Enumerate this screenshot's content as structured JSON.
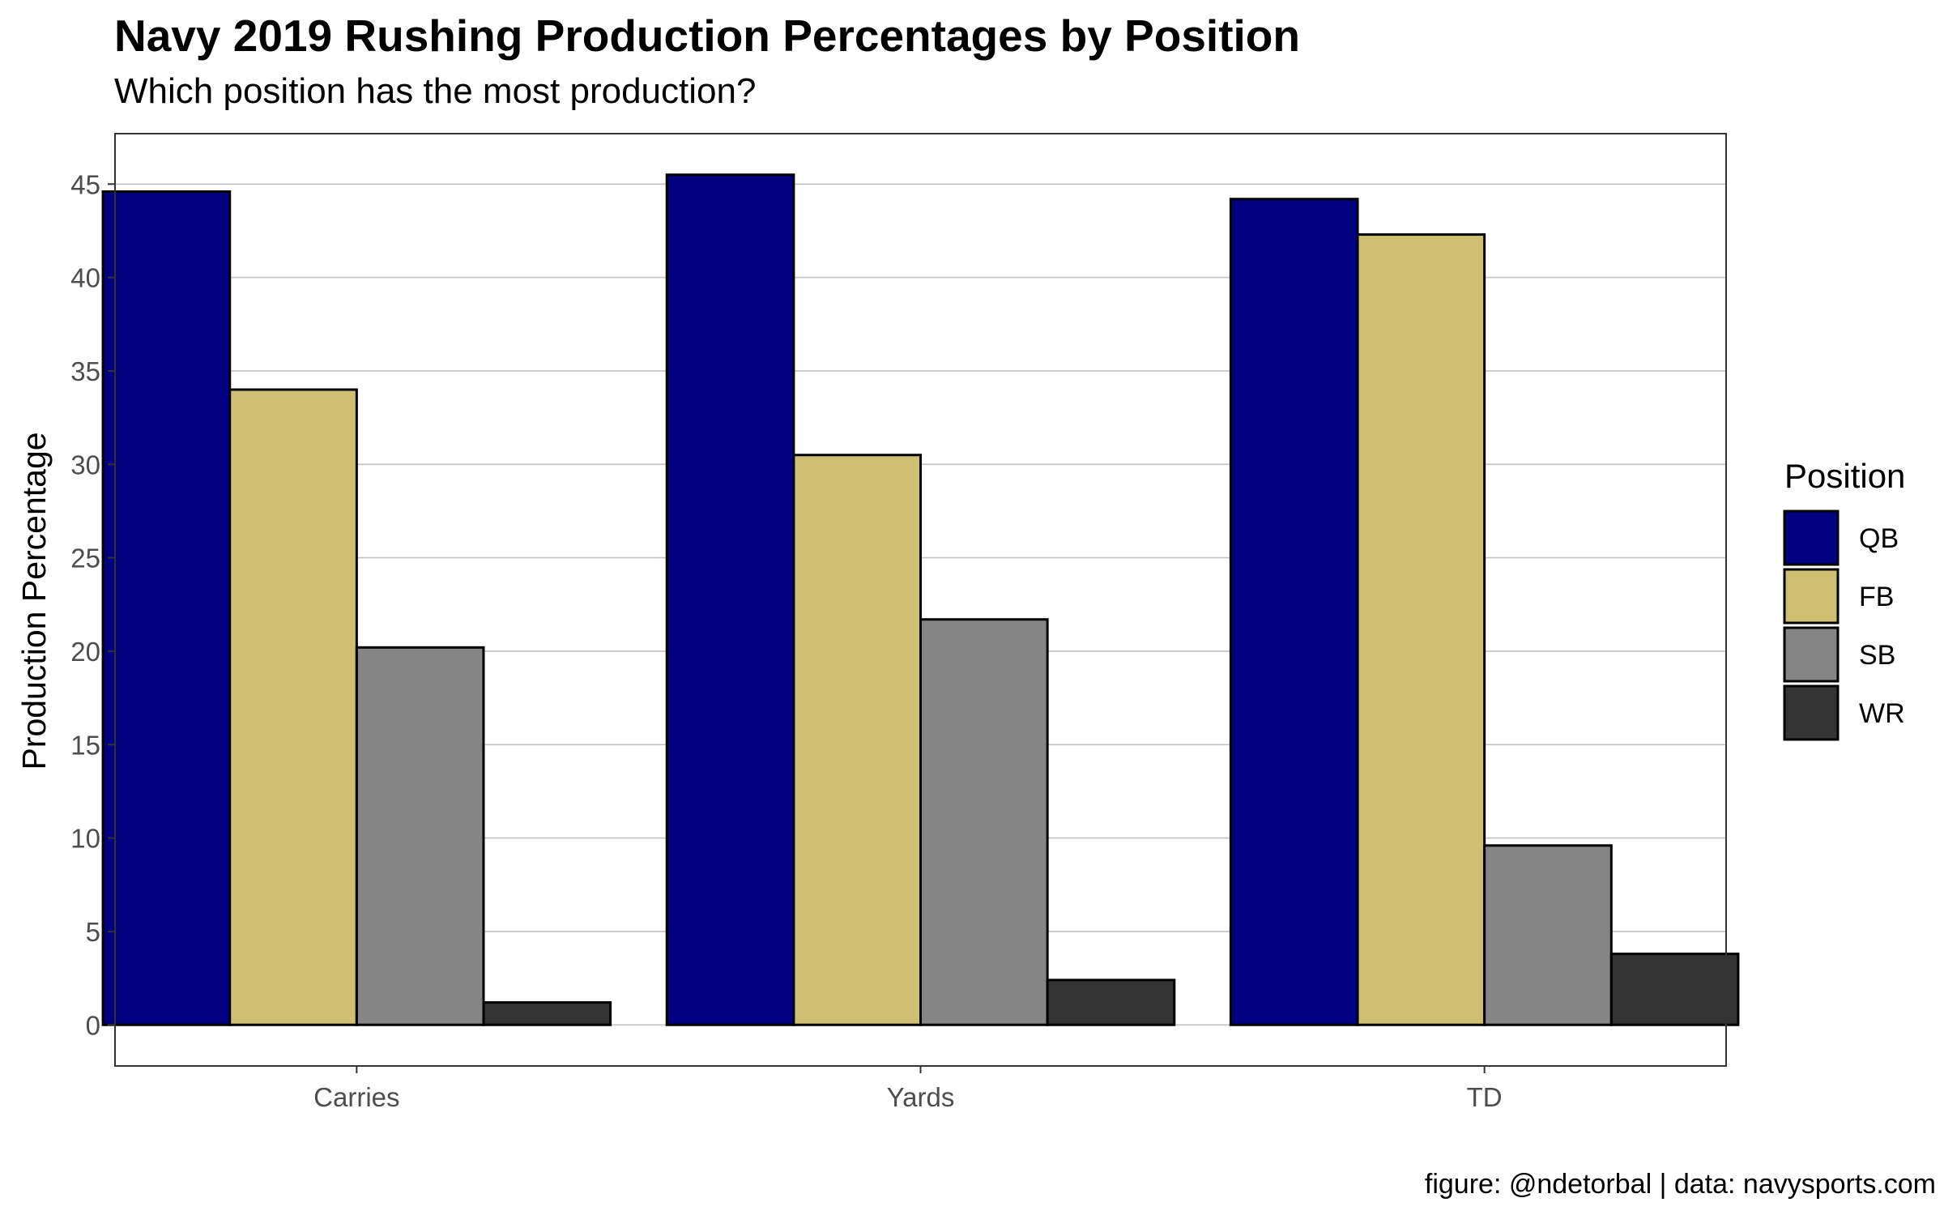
{
  "chart_data": {
    "type": "bar",
    "title": "Navy 2019 Rushing Production Percentages by Position",
    "subtitle": "Which position has the most production?",
    "xlabel": "",
    "ylabel": "Production Percentage",
    "caption": "figure: @ndetorbal  |  data: navysports.com",
    "categories": [
      "Carries",
      "Yards",
      "TD"
    ],
    "ylim": [
      -2.2,
      47.7
    ],
    "yticks": [
      0,
      5,
      10,
      15,
      20,
      25,
      30,
      35,
      40,
      45
    ],
    "grid": true,
    "legend": {
      "title": "Position",
      "placement": "right"
    },
    "series": [
      {
        "name": "QB",
        "color": "#000080",
        "values": [
          44.6,
          45.5,
          44.2
        ]
      },
      {
        "name": "FB",
        "color": "#CFBF72",
        "values": [
          34.0,
          30.5,
          42.3
        ]
      },
      {
        "name": "SB",
        "color": "#858585",
        "values": [
          20.2,
          21.7,
          9.6
        ]
      },
      {
        "name": "WR",
        "color": "#333333",
        "values": [
          1.2,
          2.4,
          3.8
        ]
      }
    ]
  }
}
